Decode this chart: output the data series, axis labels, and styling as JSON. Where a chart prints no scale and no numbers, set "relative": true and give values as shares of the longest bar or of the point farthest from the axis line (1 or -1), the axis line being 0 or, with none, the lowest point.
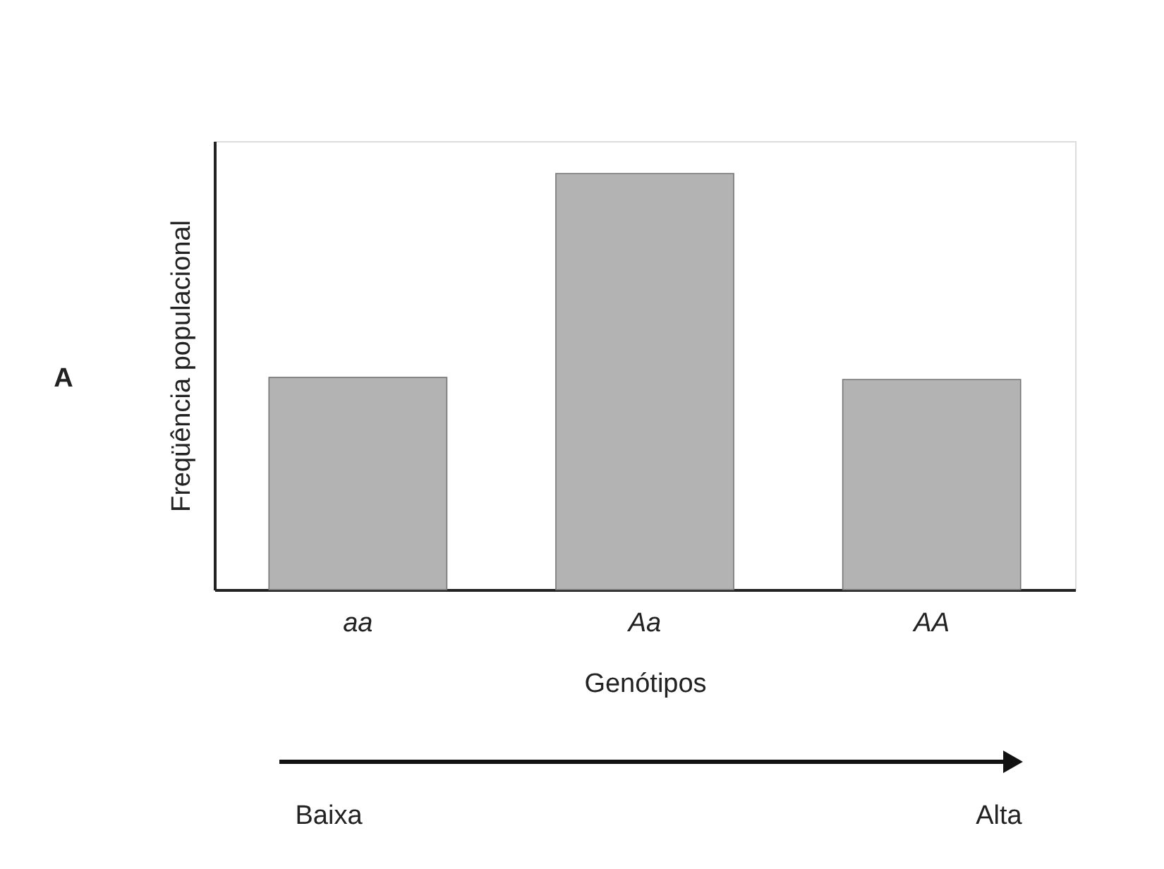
{
  "chart_data": {
    "type": "bar",
    "relative": true,
    "xlabel": "Genótipos",
    "ylabel": "Freqüência populacional",
    "categories": [
      "aa",
      "Aa",
      "AA"
    ],
    "values": [
      0.51,
      1,
      0.505
    ],
    "color": "#b3b3b3",
    "annotations": [
      "A",
      "Baixa",
      "Alta"
    ]
  }
}
